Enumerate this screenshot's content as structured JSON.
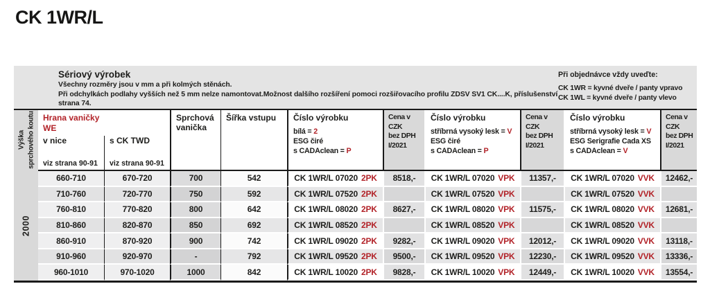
{
  "title": "CK 1WR/L",
  "colors": {
    "accent_red": "#b22228",
    "band_gray": "#e4e4e4",
    "header_gray": "#d9d9d9",
    "line_black": "#1a1a1a"
  },
  "band": {
    "title": "Sériový výrobek",
    "line1": "Všechny rozměry jsou v mm a při kolmých stěnách.",
    "line2": "Při odchylkách podlahy vyšších než 5 mm nelze namontovat.Možnost dalšího rozšíření pomoci rozšiřovacího profilu ZDSV SV1 CK....K, příslušenství",
    "line3": "strana 74.",
    "order": {
      "title": "Při objednávce vždy uveďte:",
      "line1": "CK 1WR = kyvné dveře / panty vpravo",
      "line2": "CK 1WL = kyvné dveře / panty vlevo"
    }
  },
  "header": {
    "height_label_line1": "Výška",
    "height_label_line2": "sprchového koutu",
    "edge": {
      "title_line1": "Hrana vaničky",
      "title_line2": "WE",
      "sub1": "v nice",
      "sub2": "s CK TWD",
      "note": "viz strana 90-91"
    },
    "tray": "Sprchová vanička",
    "entry": "Šířka vstupu",
    "product1": {
      "title": "Číslo výrobku",
      "l1a": "bílá = ",
      "l1b": "2",
      "l2": "ESG čiré",
      "l3a": "s CADAclean = ",
      "l3b": "P"
    },
    "product2": {
      "title": "Číslo výrobku",
      "l1a": "stříbrná vysoký lesk = ",
      "l1b": "V",
      "l2": "ESG čiré",
      "l3a": "s CADAclean = ",
      "l3b": "P"
    },
    "product3": {
      "title": "Číslo výrobku",
      "l1a": "stříbrná vysoký lesk = ",
      "l1b": "V",
      "l2": "ESG Serigrafie Cada XS",
      "l3a": "s CADAclean = ",
      "l3b": "V"
    },
    "price": {
      "l1": "Cena v CZK",
      "l2": "bez DPH",
      "l3": "I/2021"
    }
  },
  "body": {
    "height_value": "2000",
    "rows": [
      {
        "v_nice": "660-710",
        "s_ck_twd": "670-720",
        "tray": "700",
        "entry": "542",
        "code1": "CK 1WR/L 07020",
        "suf1": "2PK",
        "price1": "8518,-",
        "code2": "CK 1WR/L 07020",
        "suf2": "VPK",
        "price2": "11357,-",
        "code3": "CK 1WR/L 07020",
        "suf3": "VVK",
        "price3": "12462,-"
      },
      {
        "v_nice": "710-760",
        "s_ck_twd": "720-770",
        "tray": "750",
        "entry": "592",
        "code1": "CK 1WR/L 07520",
        "suf1": "2PK",
        "price1": "",
        "code2": "CK 1WR/L 07520",
        "suf2": "VPK",
        "price2": "",
        "code3": "CK 1WR/L 07520",
        "suf3": "VVK",
        "price3": ""
      },
      {
        "v_nice": "760-810",
        "s_ck_twd": "770-820",
        "tray": "800",
        "entry": "642",
        "code1": "CK 1WR/L 08020",
        "suf1": "2PK",
        "price1": "8627,-",
        "code2": "CK 1WR/L 08020",
        "suf2": "VPK",
        "price2": "11575,-",
        "code3": "CK 1WR/L 08020",
        "suf3": "VVK",
        "price3": "12681,-"
      },
      {
        "v_nice": "810-860",
        "s_ck_twd": "820-870",
        "tray": "850",
        "entry": "692",
        "code1": "CK 1WR/L 08520",
        "suf1": "2PK",
        "price1": "",
        "code2": "CK 1WR/L 08520",
        "suf2": "VPK",
        "price2": "",
        "code3": "CK 1WR/L 08520",
        "suf3": "VVK",
        "price3": ""
      },
      {
        "v_nice": "860-910",
        "s_ck_twd": "870-920",
        "tray": "900",
        "entry": "742",
        "code1": "CK 1WR/L 09020",
        "suf1": "2PK",
        "price1": "9282,-",
        "code2": "CK 1WR/L 09020",
        "suf2": "VPK",
        "price2": "12012,-",
        "code3": "CK 1WR/L 09020",
        "suf3": "VVK",
        "price3": "13118,-"
      },
      {
        "v_nice": "910-960",
        "s_ck_twd": "920-970",
        "tray": "-",
        "entry": "792",
        "code1": "CK 1WR/L 09520",
        "suf1": "2PK",
        "price1": "9500,-",
        "code2": "CK 1WR/L 09520",
        "suf2": "VPK",
        "price2": "12230,-",
        "code3": "CK 1WR/L 09520",
        "suf3": "VVK",
        "price3": "13336,-"
      },
      {
        "v_nice": "960-1010",
        "s_ck_twd": "970-1020",
        "tray": "1000",
        "entry": "842",
        "code1": "CK 1WR/L 10020",
        "suf1": "2PK",
        "price1": "9828,-",
        "code2": "CK 1WR/L 10020",
        "suf2": "VPK",
        "price2": "12449,-",
        "code3": "CK 1WR/L 10020",
        "suf3": "VVK",
        "price3": "13554,-"
      }
    ]
  }
}
